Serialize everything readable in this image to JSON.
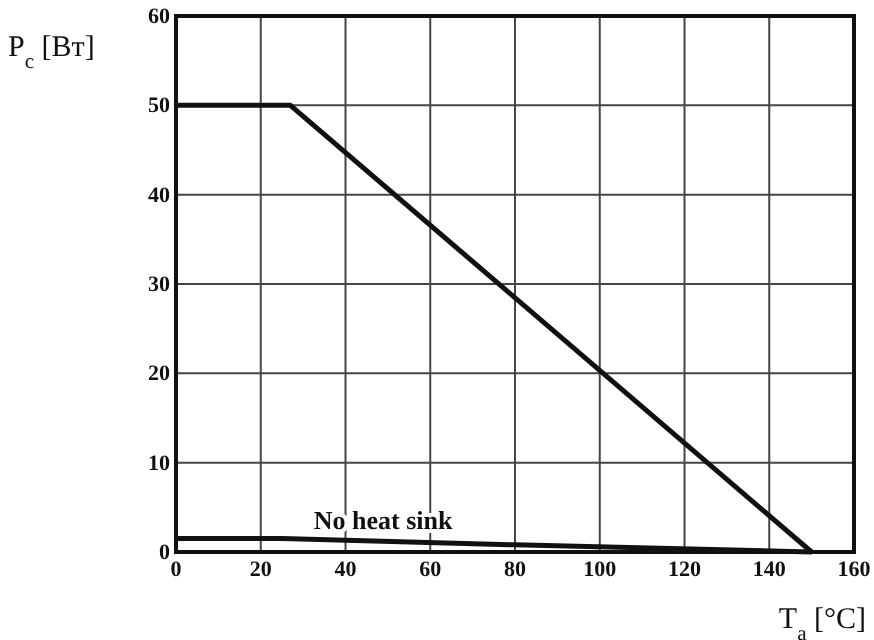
{
  "chart_data": {
    "type": "line",
    "xlabel": "T$_{a}$ [°C]",
    "ylabel": "P$_{c}$ [Вт]",
    "xlim": [
      0,
      160
    ],
    "ylim": [
      0,
      60
    ],
    "xticks": [
      0,
      20,
      40,
      60,
      80,
      100,
      120,
      140,
      160
    ],
    "yticks": [
      0,
      10,
      20,
      30,
      40,
      50,
      60
    ],
    "grid": true,
    "line_style": "solid",
    "marker": "none",
    "series": [
      {
        "color": "#111111",
        "x": [
          0,
          27,
          150
        ],
        "values": [
          50,
          50,
          0
        ]
      },
      {
        "name": "No heat sink",
        "color": "#111111",
        "x": [
          0,
          25,
          80,
          150
        ],
        "values": [
          1.5,
          1.5,
          0.8,
          0
        ]
      }
    ]
  }
}
